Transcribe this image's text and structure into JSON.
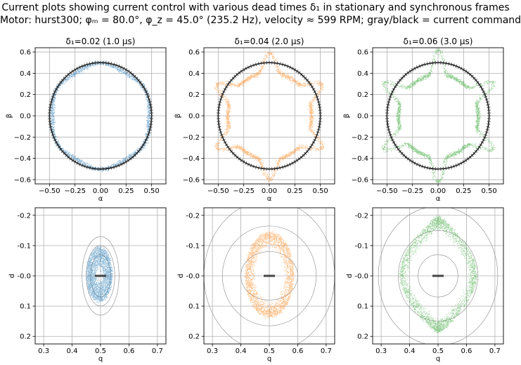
{
  "figure": {
    "title_line_1": "Current plots showing current control with various dead times δ₁ in stationary and synchronous frames",
    "title_line_2": "Motor: hurst300; φₘ = 80.0°, φ_z = 45.0° (235.2 Hz), velocity ≈ 599 RPM; gray/black = current command"
  },
  "colors": {
    "series": [
      "#1f77b4",
      "#ff7f0e",
      "#2ca02c"
    ],
    "command": "#000000",
    "grid": "#b0b0b0",
    "contour": "#888888"
  },
  "chart_data": [
    {
      "panel": "stationary-1",
      "type": "scatter",
      "title": "δ₁=0.02 (1.0 µs)",
      "xlabel": "α",
      "ylabel": "β",
      "xlim": [
        -0.64,
        0.64
      ],
      "ylim": [
        -0.64,
        0.64
      ],
      "xticks": [
        -0.5,
        -0.25,
        0.0,
        0.25,
        0.5
      ],
      "xtick_labels": [
        "−0.50",
        "−0.25",
        "0.00",
        "0.25",
        "0.50"
      ],
      "yticks": [
        -0.6,
        -0.4,
        -0.2,
        0.0,
        0.2,
        0.4,
        0.6
      ],
      "ytick_labels": [
        "−0.6",
        "−0.4",
        "−0.2",
        "0.0",
        "0.2",
        "0.4",
        "0.6"
      ],
      "command_circle_radius": 0.5,
      "dead_time": 0.02,
      "spread": 0.022,
      "color": "#1f77b4"
    },
    {
      "panel": "stationary-2",
      "type": "scatter",
      "title": "δ₁=0.04 (2.0 µs)",
      "xlabel": "α",
      "ylabel": "β",
      "xlim": [
        -0.64,
        0.64
      ],
      "ylim": [
        -0.64,
        0.64
      ],
      "xticks": [
        -0.5,
        -0.25,
        0.0,
        0.25,
        0.5
      ],
      "xtick_labels": [
        "−0.50",
        "−0.25",
        "0.00",
        "0.25",
        "0.50"
      ],
      "yticks": [
        -0.6,
        -0.4,
        -0.2,
        0.0,
        0.2,
        0.4,
        0.6
      ],
      "ytick_labels": [
        "−0.6",
        "−0.4",
        "−0.2",
        "0.0",
        "0.2",
        "0.4",
        "0.6"
      ],
      "command_circle_radius": 0.5,
      "dead_time": 0.04,
      "spread": 0.02,
      "color": "#ff7f0e"
    },
    {
      "panel": "stationary-3",
      "type": "scatter",
      "title": "δ₁=0.06 (3.0 µs)",
      "xlabel": "α",
      "ylabel": "β",
      "xlim": [
        -0.64,
        0.64
      ],
      "ylim": [
        -0.64,
        0.64
      ],
      "xticks": [
        -0.5,
        -0.25,
        0.0,
        0.25,
        0.5
      ],
      "xtick_labels": [
        "−0.50",
        "−0.25",
        "0.00",
        "0.25",
        "0.50"
      ],
      "yticks": [
        -0.6,
        -0.4,
        -0.2,
        0.0,
        0.2,
        0.4,
        0.6
      ],
      "ytick_labels": [
        "−0.6",
        "−0.4",
        "−0.2",
        "0.0",
        "0.2",
        "0.4",
        "0.6"
      ],
      "command_circle_radius": 0.5,
      "dead_time": 0.06,
      "spread": 0.02,
      "color": "#2ca02c"
    },
    {
      "panel": "synchronous-1",
      "type": "scatter",
      "xlabel": "q",
      "ylabel": "d",
      "xlim": [
        0.27,
        0.73
      ],
      "ylim": [
        0.225,
        -0.225
      ],
      "y_inverted": true,
      "xticks": [
        0.3,
        0.4,
        0.5,
        0.6,
        0.7
      ],
      "xtick_labels": [
        "0.3",
        "0.4",
        "0.5",
        "0.6",
        "0.7"
      ],
      "yticks": [
        -0.2,
        -0.1,
        0.0,
        0.1,
        0.2
      ],
      "ytick_labels": [
        "-0.2",
        "-0.1",
        "-0.0",
        "0.1",
        "0.2"
      ],
      "command_point": [
        0.5,
        0.0
      ],
      "cloud": {
        "center": [
          0.495,
          -0.005
        ],
        "radius_q": [
          0.01,
          0.045
        ],
        "radius_d": [
          0.015,
          0.09
        ]
      },
      "contour_radii_q": [
        0.035,
        0.05,
        0.065
      ],
      "contour_radii_d": [
        0.07,
        0.1,
        0.13
      ],
      "color": "#1f77b4"
    },
    {
      "panel": "synchronous-2",
      "type": "scatter",
      "xlabel": "q",
      "ylabel": "d",
      "xlim": [
        0.27,
        0.73
      ],
      "ylim": [
        0.225,
        -0.225
      ],
      "y_inverted": true,
      "xticks": [
        0.3,
        0.4,
        0.5,
        0.6,
        0.7
      ],
      "xtick_labels": [
        "0.3",
        "0.4",
        "0.5",
        "0.6",
        "0.7"
      ],
      "yticks": [
        -0.2,
        -0.1,
        0.0,
        0.1,
        0.2
      ],
      "ytick_labels": [
        "-0.2",
        "-0.1",
        "-0.0",
        "0.1",
        "0.2"
      ],
      "command_point": [
        0.5,
        0.0
      ],
      "cloud": {
        "center": [
          0.5,
          -0.005
        ],
        "radius_q": [
          0.05,
          0.085
        ],
        "radius_d": [
          0.09,
          0.14
        ]
      },
      "contour_radii_q": [
        0.1,
        0.165,
        0.23
      ],
      "contour_radii_d": [
        0.08,
        0.165,
        0.25
      ],
      "color": "#ff7f0e"
    },
    {
      "panel": "synchronous-3",
      "type": "scatter",
      "xlabel": "q",
      "ylabel": "d",
      "xlim": [
        0.27,
        0.73
      ],
      "ylim": [
        0.225,
        -0.225
      ],
      "y_inverted": true,
      "xticks": [
        0.3,
        0.4,
        0.5,
        0.6,
        0.7
      ],
      "xtick_labels": [
        "0.3",
        "0.4",
        "0.5",
        "0.6",
        "0.7"
      ],
      "yticks": [
        -0.2,
        -0.1,
        0.0,
        0.1,
        0.2
      ],
      "ytick_labels": [
        "-0.2",
        "-0.1",
        "-0.0",
        "0.1",
        "0.2"
      ],
      "command_point": [
        0.5,
        0.0
      ],
      "cloud": {
        "center": [
          0.5,
          -0.005
        ],
        "radius_q": [
          0.085,
          0.115
        ],
        "radius_d": [
          0.15,
          0.19
        ]
      },
      "contour_radii_q": [
        0.07,
        0.14,
        0.21
      ],
      "contour_radii_d": [
        0.07,
        0.15,
        0.23
      ],
      "color": "#2ca02c"
    }
  ]
}
